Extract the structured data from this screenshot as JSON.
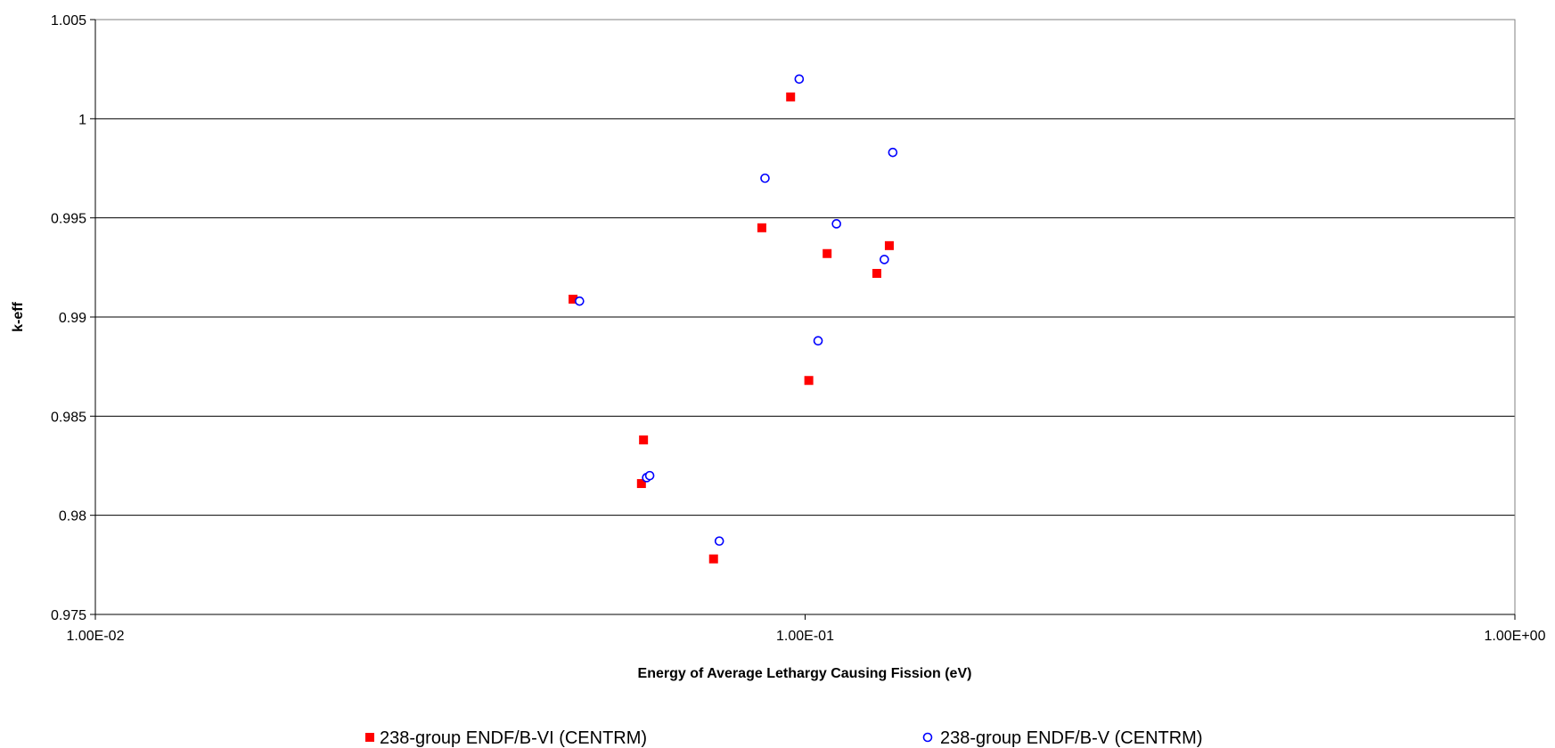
{
  "chart_data": {
    "type": "scatter",
    "title": "",
    "xlabel": "Energy of Average Lethargy Causing Fission (eV)",
    "ylabel": "k-eff",
    "x_scale": "log",
    "xlim": [
      0.01,
      1.0
    ],
    "ylim": [
      0.975,
      1.005
    ],
    "x_ticks": [
      0.01,
      0.1,
      1.0
    ],
    "x_tick_labels": [
      "1.00E-02",
      "1.00E-01",
      "1.00E+00"
    ],
    "y_ticks": [
      0.975,
      0.98,
      0.985,
      0.99,
      0.995,
      1.0,
      1.005
    ],
    "y_tick_labels": [
      "0.975",
      "0.98",
      "0.985",
      "0.99",
      "0.995",
      "1",
      "1.005"
    ],
    "grid": "horizontal",
    "legend_position": "bottom",
    "series": [
      {
        "name": "238-group ENDF/B-VI (CENTRM)",
        "marker": "filled-square",
        "color": "#ff0000",
        "x": [
          0.0471,
          0.0592,
          0.0588,
          0.0743,
          0.0869,
          0.0954,
          0.1012,
          0.1074,
          0.1262,
          0.1314
        ],
        "y": [
          0.9909,
          0.9838,
          0.9816,
          0.9778,
          0.9945,
          1.0011,
          0.9868,
          0.9932,
          0.9922,
          0.9936
        ]
      },
      {
        "name": "238-group ENDF/B-V (CENTRM)",
        "marker": "hollow-circle",
        "color": "#0000ff",
        "x": [
          0.0481,
          0.0598,
          0.0604,
          0.0757,
          0.0878,
          0.0981,
          0.1043,
          0.1107,
          0.1293,
          0.1329
        ],
        "y": [
          0.9908,
          0.9819,
          0.982,
          0.9787,
          0.997,
          1.002,
          0.9888,
          0.9947,
          0.9929,
          0.9983
        ]
      }
    ]
  }
}
